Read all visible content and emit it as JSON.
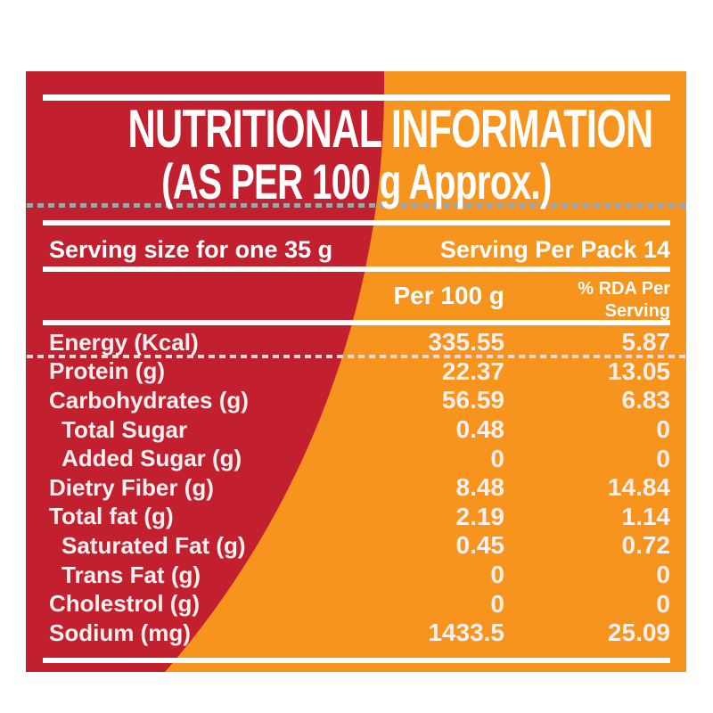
{
  "label": {
    "title_line1": "NUTRITIONAL INFORMATION",
    "title_line2": "(AS PER 100 g Approx.)",
    "serving": {
      "size_text": "Serving size for one 35 g",
      "per_pack_text": "Serving Per Pack 14"
    },
    "columns": {
      "per_100g_header": "Per 100 g",
      "rda_header_line1": "% RDA Per",
      "rda_header_line2": "Serving"
    },
    "rows": [
      {
        "name": "Energy (Kcal)",
        "per100": "335.55",
        "rda": "5.87",
        "indent": false
      },
      {
        "name": "Protein (g)",
        "per100": "22.37",
        "rda": "13.05",
        "indent": false
      },
      {
        "name": "Carbohydrates (g)",
        "per100": "56.59",
        "rda": "6.83",
        "indent": false
      },
      {
        "name": "Total Sugar",
        "per100": "0.48",
        "rda": "0",
        "indent": true
      },
      {
        "name": "Added Sugar (g)",
        "per100": "0",
        "rda": "0",
        "indent": true
      },
      {
        "name": "Dietry Fiber (g)",
        "per100": "8.48",
        "rda": "14.84",
        "indent": false
      },
      {
        "name": "Total fat (g)",
        "per100": "2.19",
        "rda": "1.14",
        "indent": false
      },
      {
        "name": "Saturated Fat (g)",
        "per100": "0.45",
        "rda": "0.72",
        "indent": true
      },
      {
        "name": "Trans Fat (g)",
        "per100": "0",
        "rda": "0",
        "indent": true
      },
      {
        "name": "Cholestrol (g)",
        "per100": "0",
        "rda": "0",
        "indent": false
      },
      {
        "name": "Sodium (mg)",
        "per100": "1433.5",
        "rda": "25.09",
        "indent": false
      }
    ],
    "colors": {
      "red": "#C2202E",
      "orange": "#F7941D",
      "text_white": "#FFFFFF",
      "text_body": "#FCEFEF",
      "dash_gray": "#A2A4A6",
      "dash_pink": "#F3D5D6"
    }
  }
}
